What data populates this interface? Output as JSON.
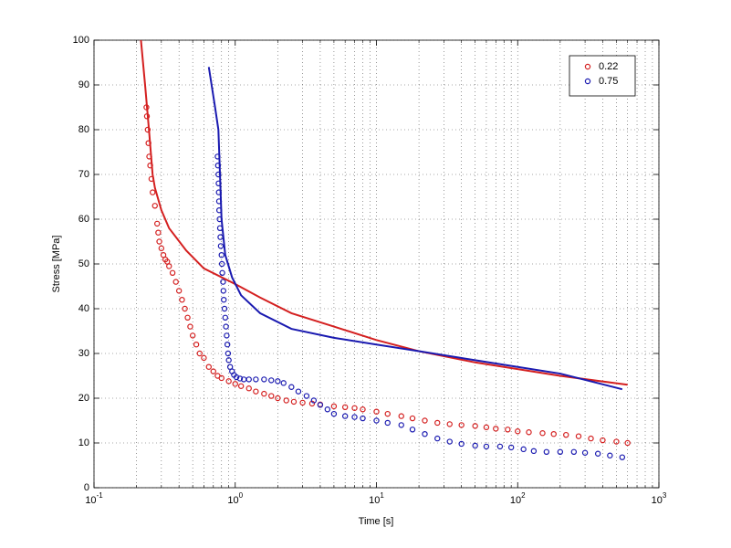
{
  "chart_data": {
    "type": "scatter-line",
    "xlabel": "Time [s]",
    "ylabel": "Stress [MPa]",
    "xscale": "log",
    "grid": true,
    "minor_grid": true,
    "legend": "upper right",
    "xlim": [
      0.1,
      1000
    ],
    "ylim": [
      0,
      100
    ],
    "xticks": [
      {
        "value": 0.1,
        "label": "10",
        "exponent": "-1"
      },
      {
        "value": 1,
        "label": "10",
        "exponent": "0"
      },
      {
        "value": 10,
        "label": "10",
        "exponent": "1"
      },
      {
        "value": 100,
        "label": "10",
        "exponent": "2"
      },
      {
        "value": 1000,
        "label": "10",
        "exponent": "3"
      }
    ],
    "yticks": [
      0,
      10,
      20,
      30,
      40,
      50,
      60,
      70,
      80,
      90,
      100
    ],
    "series": [
      {
        "name": "0.22",
        "color": "#d42020",
        "style": "marker",
        "x": [
          0.235,
          0.237,
          0.24,
          0.243,
          0.246,
          0.25,
          0.255,
          0.26,
          0.27,
          0.28,
          0.285,
          0.29,
          0.3,
          0.31,
          0.32,
          0.33,
          0.34,
          0.36,
          0.38,
          0.4,
          0.42,
          0.44,
          0.46,
          0.48,
          0.5,
          0.53,
          0.56,
          0.6,
          0.65,
          0.7,
          0.75,
          0.8,
          0.9,
          1.0,
          1.1,
          1.25,
          1.4,
          1.6,
          1.8,
          2,
          2.3,
          2.6,
          3,
          3.5,
          4,
          5,
          6,
          7,
          8,
          10,
          12,
          15,
          18,
          22,
          27,
          33,
          40,
          50,
          60,
          70,
          85,
          100,
          120,
          150,
          180,
          220,
          270,
          330,
          400,
          500,
          600
        ],
        "values": [
          85,
          83,
          80,
          77,
          74,
          72,
          69,
          66,
          63,
          59,
          57,
          55,
          53.5,
          52,
          51,
          50.5,
          49.5,
          48,
          46,
          44,
          42,
          40,
          38,
          36,
          34,
          32,
          30,
          29,
          27,
          26,
          25,
          24.5,
          23.8,
          23.2,
          22.7,
          22.2,
          21.5,
          21,
          20.5,
          20,
          19.5,
          19.2,
          19,
          18.8,
          18.6,
          18.2,
          18,
          17.8,
          17.5,
          17,
          16.5,
          16,
          15.5,
          15,
          14.5,
          14.2,
          14,
          13.8,
          13.5,
          13.2,
          13,
          12.6,
          12.4,
          12.2,
          12,
          11.8,
          11.5,
          11,
          10.6,
          10.3,
          10
        ]
      },
      {
        "name": "0.75",
        "color": "#1a1ab0",
        "style": "marker",
        "x": [
          0.75,
          0.755,
          0.76,
          0.762,
          0.765,
          0.768,
          0.77,
          0.775,
          0.78,
          0.785,
          0.79,
          0.8,
          0.805,
          0.81,
          0.82,
          0.825,
          0.83,
          0.84,
          0.85,
          0.86,
          0.87,
          0.88,
          0.89,
          0.9,
          0.92,
          0.95,
          0.98,
          1.02,
          1.08,
          1.15,
          1.25,
          1.4,
          1.6,
          1.8,
          2,
          2.2,
          2.5,
          2.8,
          3.2,
          3.6,
          4,
          4.5,
          5,
          6,
          7,
          8,
          10,
          12,
          15,
          18,
          22,
          27,
          33,
          40,
          50,
          60,
          75,
          90,
          110,
          130,
          160,
          200,
          250,
          300,
          370,
          450,
          550
        ],
        "values": [
          74,
          72,
          70,
          68,
          66,
          64,
          62,
          60,
          58,
          56,
          54,
          52,
          50,
          48,
          46,
          44,
          42,
          40,
          38,
          36,
          34,
          32,
          30,
          28.5,
          27,
          26,
          25.2,
          24.7,
          24.4,
          24.2,
          24.2,
          24.2,
          24.2,
          24,
          23.8,
          23.4,
          22.5,
          21.5,
          20.5,
          19.5,
          18.5,
          17.5,
          16.5,
          16,
          15.8,
          15.5,
          15,
          14.5,
          14,
          13,
          12,
          11,
          10.3,
          9.8,
          9.4,
          9.2,
          9.2,
          9,
          8.6,
          8.2,
          8,
          8,
          8,
          7.8,
          7.6,
          7.2,
          6.8
        ]
      },
      {
        "color": "#d42020",
        "style": "line",
        "x": [
          0.215,
          0.23,
          0.245,
          0.26,
          0.27,
          0.3,
          0.34,
          0.45,
          0.6,
          1.0,
          1.5,
          2.5,
          5,
          10,
          20,
          50,
          100,
          200,
          600
        ],
        "values": [
          100,
          90,
          80,
          70,
          67,
          62,
          58,
          53,
          49,
          45.5,
          42.5,
          39,
          36,
          33,
          30.5,
          28,
          26.5,
          25,
          23
        ]
      },
      {
        "color": "#1a1ab0",
        "style": "line",
        "x": [
          0.65,
          0.72,
          0.76,
          0.78,
          0.8,
          0.85,
          0.95,
          1.1,
          1.5,
          2.5,
          5,
          10,
          20,
          50,
          100,
          200,
          550
        ],
        "values": [
          94,
          85,
          80,
          70,
          60,
          52,
          47,
          43,
          39,
          35.5,
          33.5,
          32,
          30.5,
          28.5,
          27,
          25.5,
          22
        ]
      }
    ]
  }
}
